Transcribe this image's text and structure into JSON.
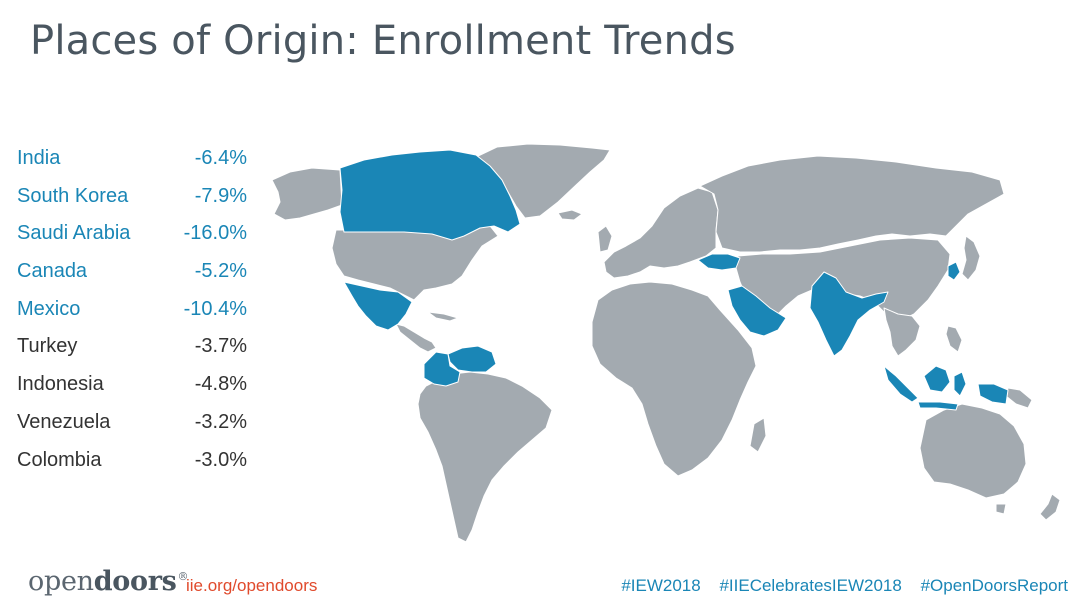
{
  "title": "Places of Origin: Enrollment Trends",
  "countries": [
    {
      "name": "India",
      "change": "-6.4%",
      "highlight": true
    },
    {
      "name": "South Korea",
      "change": "-7.9%",
      "highlight": true
    },
    {
      "name": "Saudi Arabia",
      "change": "-16.0%",
      "highlight": true
    },
    {
      "name": "Canada",
      "change": "-5.2%",
      "highlight": true
    },
    {
      "name": "Mexico",
      "change": "-10.4%",
      "highlight": true
    },
    {
      "name": "Turkey",
      "change": "-3.7%",
      "highlight": false
    },
    {
      "name": "Indonesia",
      "change": "-4.8%",
      "highlight": false
    },
    {
      "name": "Venezuela",
      "change": "-3.2%",
      "highlight": false
    },
    {
      "name": "Colombia",
      "change": "-3.0%",
      "highlight": false
    }
  ],
  "map": {
    "highlighted_countries": [
      "Canada",
      "Mexico",
      "Venezuela",
      "Colombia",
      "Turkey",
      "Saudi Arabia",
      "India",
      "South Korea",
      "Indonesia"
    ],
    "land_color": "#a3aab0",
    "highlight_color": "#1a86b6"
  },
  "footer": {
    "logo_light": "open",
    "logo_bold": "doors",
    "logo_mark": "®",
    "website": "iie.org/opendoors",
    "hashtags": [
      "#IEW2018",
      "#IIECelebratesIEW2018",
      "#OpenDoorsReport"
    ]
  },
  "colors": {
    "title": "#4a5660",
    "accent_blue": "#1a86b6",
    "dark_text": "#333333",
    "link_red": "#e04a2c"
  }
}
